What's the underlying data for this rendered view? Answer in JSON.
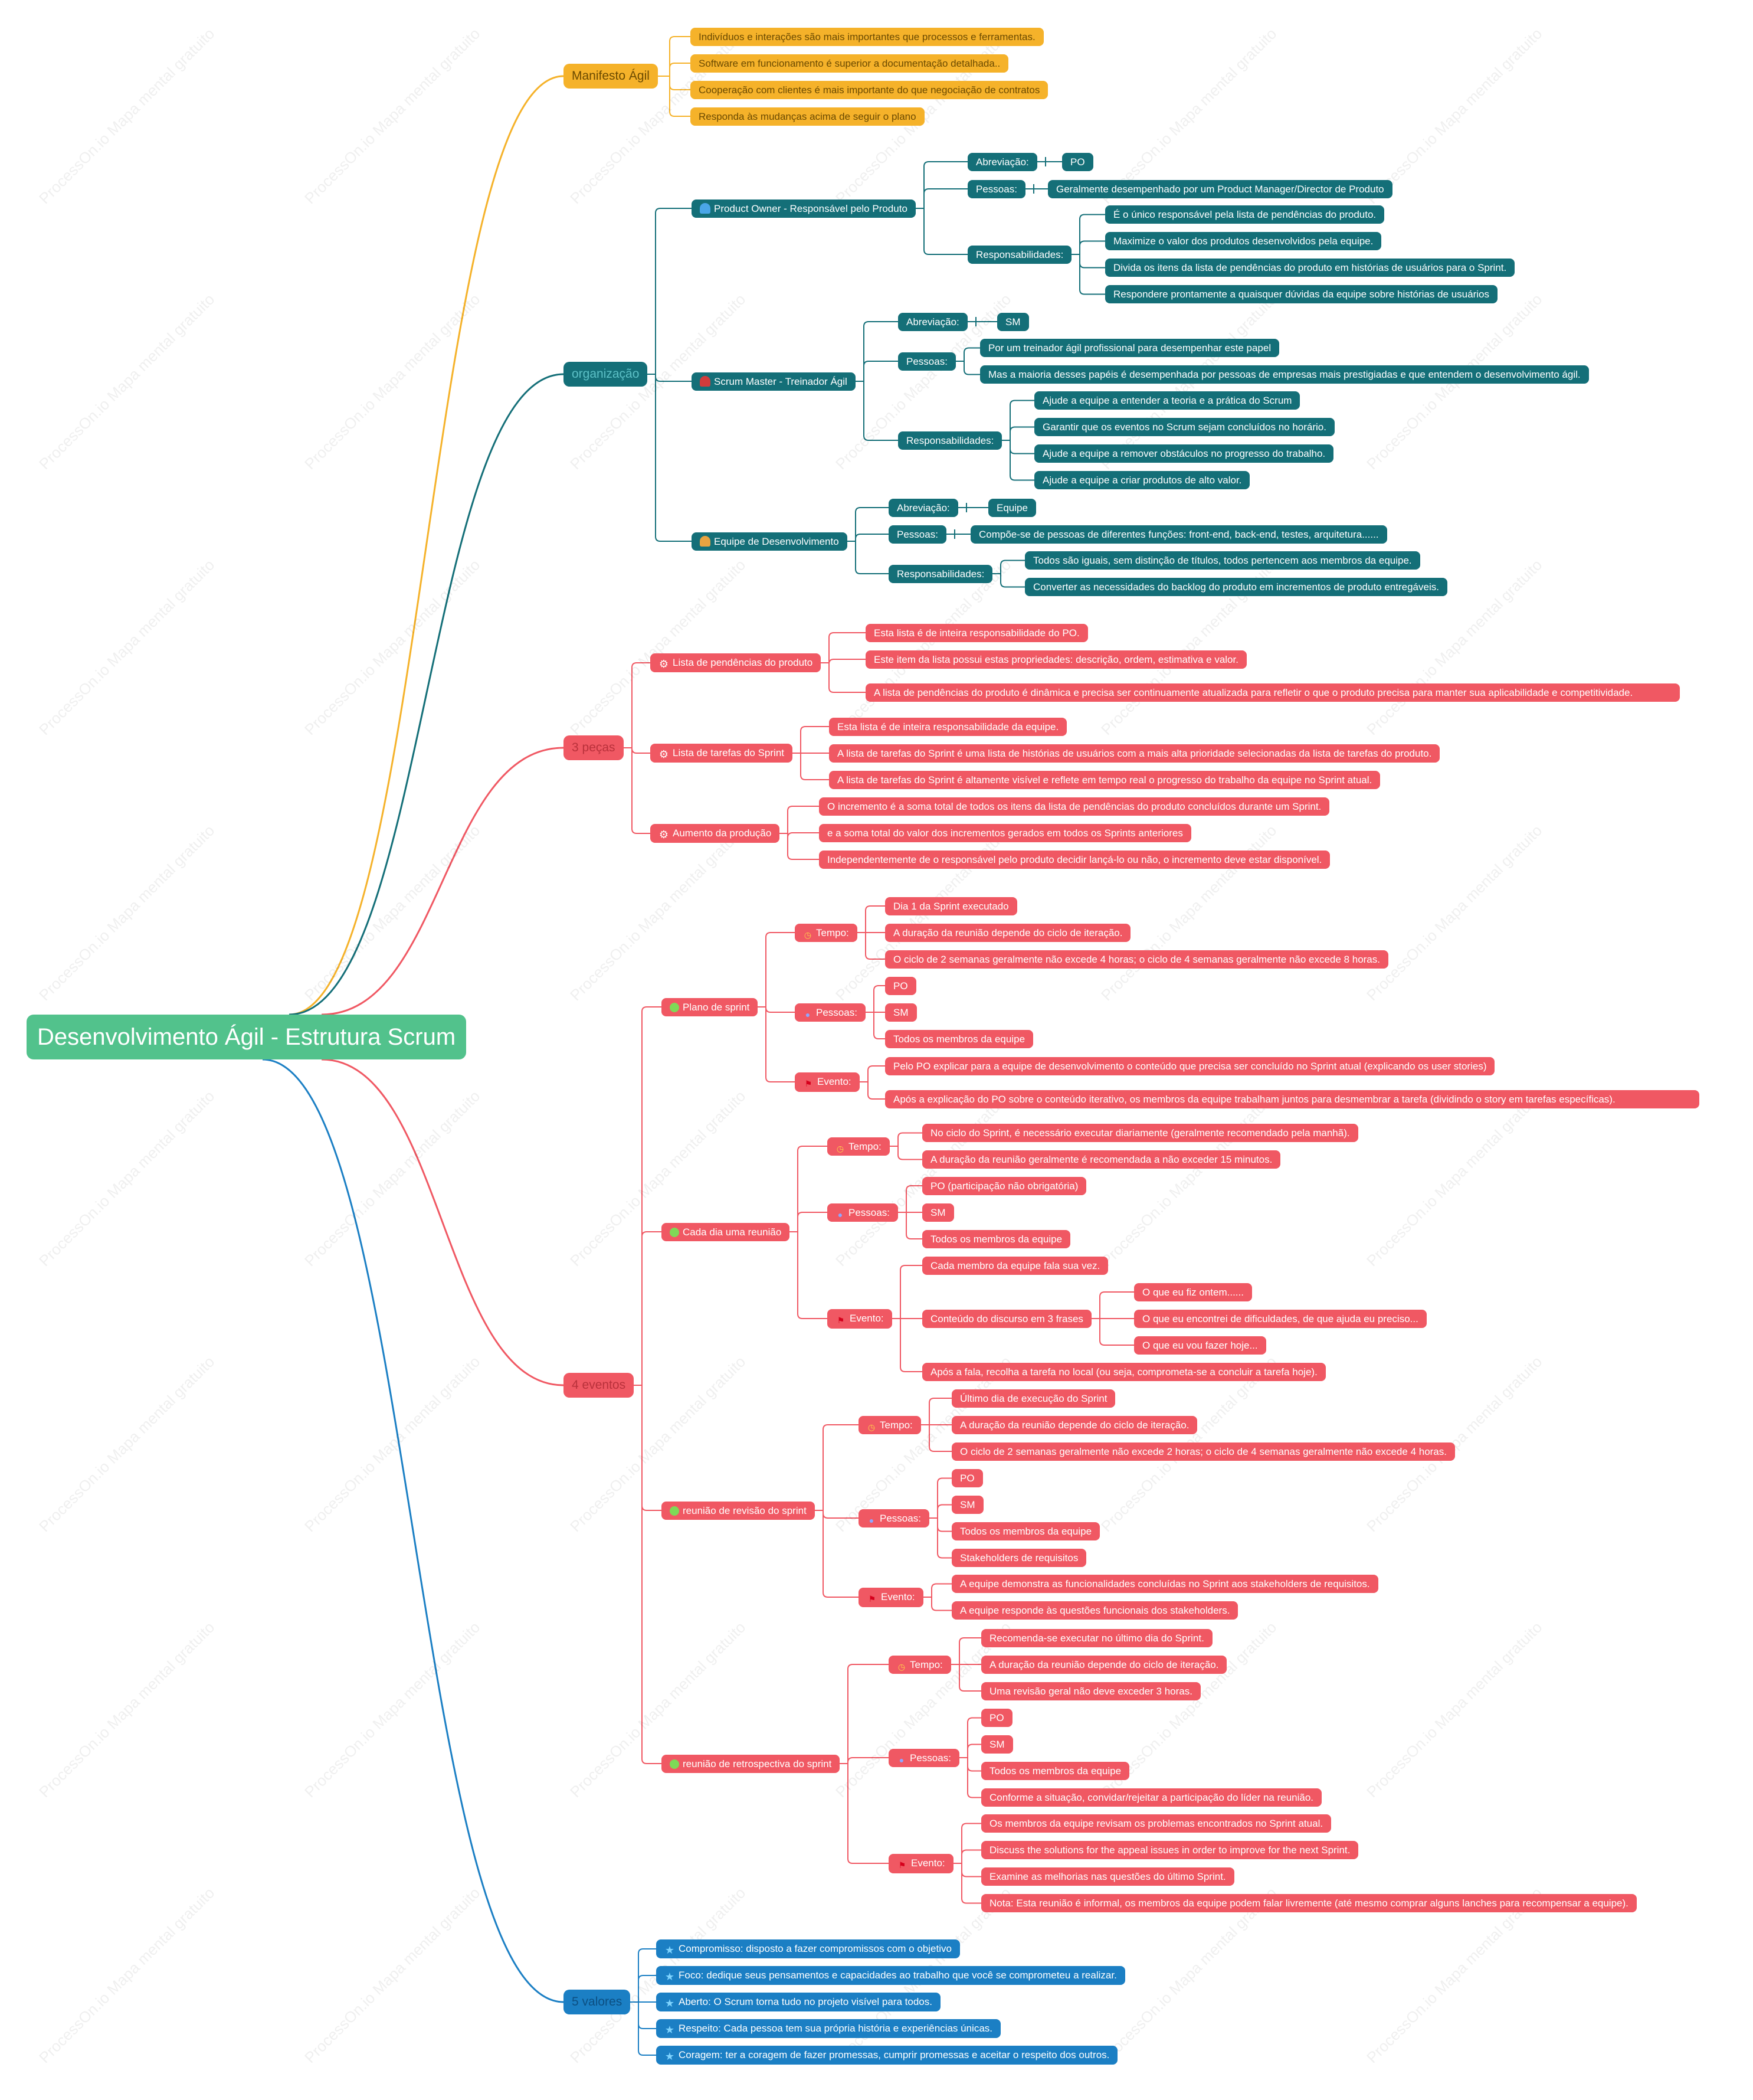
{
  "root": {
    "text": "Desenvolvimento Ágil - Estrutura Scrum"
  },
  "watermark": "ProcessOn.io Mapa mental gratuito",
  "colors": {
    "root": "#52c28c",
    "manifesto": "#f5b22a",
    "organization": "#146f78",
    "artifacts": "#f05863",
    "events": "#f05863",
    "values": "#1b7fc4"
  },
  "manifesto": {
    "label": "Manifesto Ágil",
    "items": [
      "Indivíduos e interações são mais importantes que processos e ferramentas.",
      "Software em funcionamento é superior a documentação detalhada..",
      "Cooperação com clientes é mais importante do que negociação de contratos",
      "Responda às mudanças acima de seguir o plano"
    ]
  },
  "organization": {
    "label": "organização",
    "roles": [
      {
        "label": "Product Owner - Responsável pelo Produto",
        "icon": "person-icon",
        "abbr_label": "Abreviação:",
        "abbr": [
          "PO"
        ],
        "people_label": "Pessoas:",
        "people": [
          "Geralmente desempenhado por um Product Manager/Director de Produto"
        ],
        "resp_label": "Responsabilidades:",
        "resp": [
          "É o único responsável pela lista de pendências do produto.",
          "Maximize o valor dos produtos desenvolvidos pela equipe.",
          "Divida os itens da lista de pendências do produto em histórias de usuários para o Sprint.",
          "Respondere prontamente a quaisquer dúvidas da equipe sobre histórias de usuários"
        ]
      },
      {
        "label": "Scrum Master - Treinador Ágil",
        "icon": "person-icon",
        "abbr_label": "Abreviação:",
        "abbr": [
          "SM"
        ],
        "people_label": "Pessoas:",
        "people": [
          "Por um treinador ágil profissional para desempenhar este papel",
          "Mas a maioria desses papéis é desempenhada por pessoas de empresas mais prestigiadas e que entendem o desenvolvimento ágil."
        ],
        "resp_label": "Responsabilidades:",
        "resp": [
          "Ajude a equipe a entender a teoria e a prática do Scrum",
          "Garantir que os eventos no Scrum sejam concluídos no horário.",
          "Ajude a equipe a remover obstáculos no progresso do trabalho.",
          "Ajude a equipe a criar produtos de alto valor."
        ]
      },
      {
        "label": "Equipe de Desenvolvimento",
        "icon": "person-icon",
        "abbr_label": "Abreviação:",
        "abbr": [
          "Equipe"
        ],
        "people_label": "Pessoas:",
        "people": [
          "Compõe-se de pessoas de diferentes funções: front-end, back-end, testes, arquitetura......"
        ],
        "resp_label": "Responsabilidades:",
        "resp": [
          "Todos são iguais, sem distinção de títulos, todos pertencem aos membros da equipe.",
          "Converter as necessidades do backlog do produto em incrementos de produto entregáveis."
        ]
      }
    ]
  },
  "artifacts": {
    "label": "3 peças",
    "items": [
      {
        "label": "Lista de pendências do produto",
        "icon": "gear-icon",
        "children": [
          "Esta lista é de inteira responsabilidade do PO.",
          "Este item da lista possui estas propriedades: descrição, ordem, estimativa e valor.",
          "A lista de pendências do produto é dinâmica e precisa ser continuamente atualizada para refletir o que o produto precisa para manter sua aplicabilidade e competitividade."
        ]
      },
      {
        "label": "Lista de tarefas do Sprint",
        "icon": "gear-icon",
        "children": [
          "Esta lista é de inteira responsabilidade da equipe.",
          "A lista de tarefas do Sprint é uma lista de histórias de usuários com a mais alta prioridade selecionadas da lista de tarefas do produto.",
          "A lista de tarefas do Sprint é altamente visível e reflete em tempo real o progresso do trabalho da equipe no Sprint atual."
        ]
      },
      {
        "label": "Aumento da produção",
        "icon": "gear-icon",
        "children": [
          "O incremento é a soma total de todos os itens da lista de pendências do produto concluídos durante um Sprint.",
          "e a soma total do valor dos incrementos gerados em todos os Sprints anteriores",
          "Independentemente de o responsável pelo produto decidir lançá-lo ou não, o incremento deve estar disponível."
        ]
      }
    ]
  },
  "events": {
    "label": "4 eventos",
    "time_label": "Tempo:",
    "people_label": "Pessoas:",
    "event_label": "Evento:",
    "items": [
      {
        "label": "Plano de sprint",
        "time": [
          "Dia 1 da Sprint executado",
          "A duração da reunião depende do ciclo de iteração.",
          "O ciclo de 2 semanas geralmente não excede 4 horas; o ciclo de 4 semanas geralmente não excede 8 horas."
        ],
        "people": [
          "PO",
          "SM",
          "Todos os membros da equipe"
        ],
        "event": [
          "Pelo PO explicar para a equipe de desenvolvimento o conteúdo que precisa ser concluído no Sprint atual (explicando os user stories)",
          "Após a explicação do PO sobre o conteúdo iterativo, os membros da equipe trabalham juntos para desmembrar a tarefa (dividindo o story em tarefas específicas)."
        ]
      },
      {
        "label": "Cada dia uma reunião",
        "time": [
          "No ciclo do Sprint, é necessário executar diariamente (geralmente recomendado pela manhã).",
          "A duração da reunião geralmente é recomendada a não exceder 15 minutos."
        ],
        "people": [
          "PO (participação não obrigatória)",
          "SM",
          "Todos os membros da equipe"
        ],
        "event": [
          "Cada membro da equipe fala sua vez.",
          "Conteúdo do discurso em 3 frases",
          "Após a fala, recolha a tarefa no local (ou seja, comprometa-se a concluir a tarefa hoje)."
        ],
        "phrases": [
          "O que eu fiz ontem......",
          "O que eu encontrei de dificuldades, de que ajuda eu preciso...",
          "O que eu vou fazer hoje..."
        ]
      },
      {
        "label": "reunião de revisão do sprint",
        "time": [
          "Último dia de execução do Sprint",
          "A duração da reunião depende do ciclo de iteração.",
          "O ciclo de 2 semanas geralmente não excede 2 horas; o ciclo de 4 semanas geralmente não excede 4 horas."
        ],
        "people": [
          "PO",
          "SM",
          "Todos os membros da equipe",
          "Stakeholders de requisitos"
        ],
        "event": [
          "A equipe demonstra as funcionalidades concluídas no Sprint aos stakeholders de requisitos.",
          "A equipe responde às questões funcionais dos stakeholders."
        ]
      },
      {
        "label": "reunião de retrospectiva do sprint",
        "time": [
          "Recomenda-se executar no último dia do Sprint.",
          "A duração da reunião depende do ciclo de iteração.",
          "Uma revisão geral não deve exceder 3 horas."
        ],
        "people": [
          "PO",
          "SM",
          "Todos os membros da equipe",
          "Conforme a situação, convidar/rejeitar a participação do líder na reunião."
        ],
        "event": [
          "Os membros da equipe revisam os problemas encontrados no Sprint atual.",
          "Discuss the solutions for the appeal issues in order to improve for the next Sprint.",
          "Examine as melhorias nas questões do último Sprint.",
          "Nota: Esta reunião é informal, os membros da equipe podem falar livremente (até mesmo comprar alguns lanches para recompensar a equipe)."
        ]
      }
    ]
  },
  "values": {
    "label": "5 valores",
    "items": [
      "Compromisso: disposto a fazer compromissos com o objetivo",
      "Foco: dedique seus pensamentos e capacidades ao trabalho que você se comprometeu a realizar.",
      "Aberto: O Scrum torna tudo no projeto visível para todos.",
      "Respeito: Cada pessoa tem sua própria história e experiências únicas.",
      "Coragem: ter a coragem de fazer promessas, cumprir promessas e aceitar o respeito dos outros."
    ]
  }
}
